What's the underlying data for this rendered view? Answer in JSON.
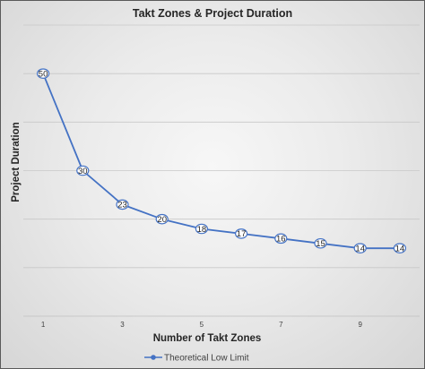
{
  "chart_data": {
    "type": "line",
    "title": "Takt Zones  & Project Duration",
    "xlabel": "Number of Takt Zones",
    "ylabel": "Project Duration",
    "x": [
      1,
      2,
      3,
      4,
      5,
      6,
      7,
      8,
      9,
      10
    ],
    "x_tick_labels": [
      "1",
      "3",
      "5",
      "7",
      "9"
    ],
    "x_tick_values": [
      1,
      3,
      5,
      7,
      9
    ],
    "ylim": [
      0,
      60
    ],
    "y_grid_values": [
      10,
      20,
      30,
      40,
      50,
      60
    ],
    "grid": true,
    "legend_position": "bottom",
    "series": [
      {
        "name": "Theoretical Low Limit",
        "color": "#4472c4",
        "values": [
          50,
          30,
          23,
          20,
          18,
          17,
          16,
          15,
          14,
          14
        ],
        "data_labels": [
          "50",
          "30",
          "23",
          "20",
          "18",
          "17",
          "16",
          "15",
          "14",
          "14"
        ]
      }
    ]
  }
}
